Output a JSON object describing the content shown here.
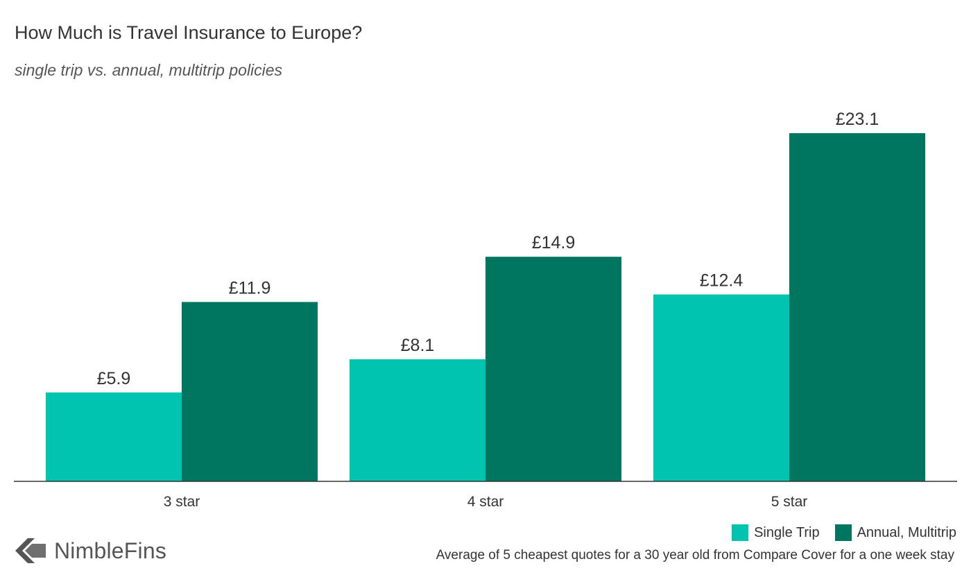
{
  "chart_data": {
    "type": "bar",
    "title": "How Much is Travel Insurance to Europe?",
    "subtitle": "single trip vs. annual, multitrip policies",
    "categories": [
      "3 star",
      "4 star",
      "5 star"
    ],
    "series": [
      {
        "name": "Single Trip",
        "color": "#00c4b0",
        "values": [
          5.9,
          8.1,
          12.4
        ],
        "labels": [
          "£5.9",
          "£8.1",
          "£12.4"
        ]
      },
      {
        "name": "Annual, Multitrip",
        "color": "#007661",
        "values": [
          11.9,
          14.9,
          23.1
        ],
        "labels": [
          "£11.9",
          "£14.9",
          "£23.1"
        ]
      }
    ],
    "xlabel": "",
    "ylabel": "",
    "ylim": [
      0,
      25
    ],
    "grid": false,
    "legend": "bottom-right",
    "source": "Average of 5 cheapest quotes for a 30 year old from Compare Cover for a one week stay"
  },
  "brand": {
    "name": "NimbleFins",
    "logo_icon": "chevron-left-arrow-icon"
  }
}
